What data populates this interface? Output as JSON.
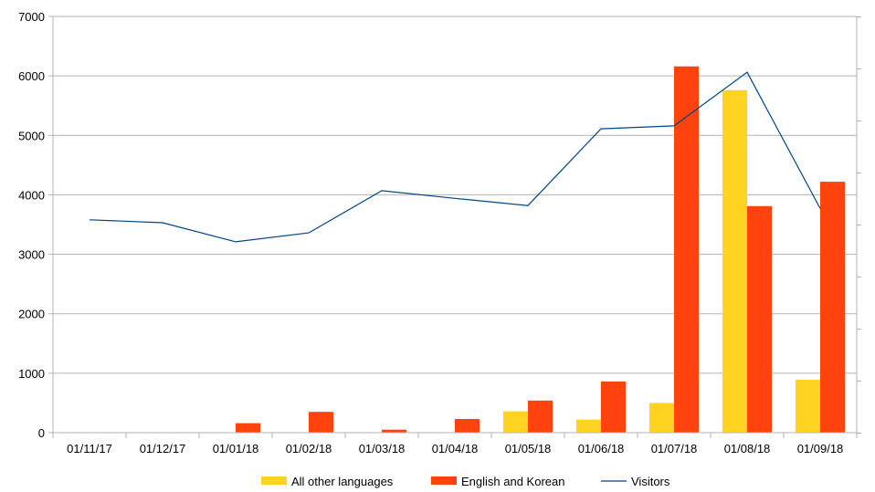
{
  "chart_data": {
    "type": "bar",
    "categories": [
      "01/11/17",
      "01/12/17",
      "01/01/18",
      "01/02/18",
      "01/03/18",
      "01/04/18",
      "01/05/18",
      "01/06/18",
      "01/07/18",
      "01/08/18",
      "01/09/18"
    ],
    "series": [
      {
        "name": "All other languages",
        "type": "bar",
        "color": "#FFD320",
        "values": [
          0,
          0,
          0,
          0,
          0,
          0,
          360,
          220,
          500,
          5760,
          890
        ]
      },
      {
        "name": "English and Korean",
        "type": "bar",
        "color": "#FF420E",
        "values": [
          0,
          0,
          160,
          350,
          50,
          230,
          540,
          860,
          6160,
          3810,
          4220
        ]
      },
      {
        "name": "Visitors",
        "type": "line",
        "color": "#004586",
        "values": [
          3580,
          3530,
          3210,
          3360,
          4070,
          3940,
          3820,
          5110,
          5160,
          6060,
          3770
        ]
      }
    ],
    "y_ticks": [
      "0",
      "1000",
      "2000",
      "3000",
      "4000",
      "5000",
      "6000",
      "7000"
    ],
    "ylim": [
      0,
      7000
    ],
    "grid": true,
    "legend_position": "bottom"
  }
}
